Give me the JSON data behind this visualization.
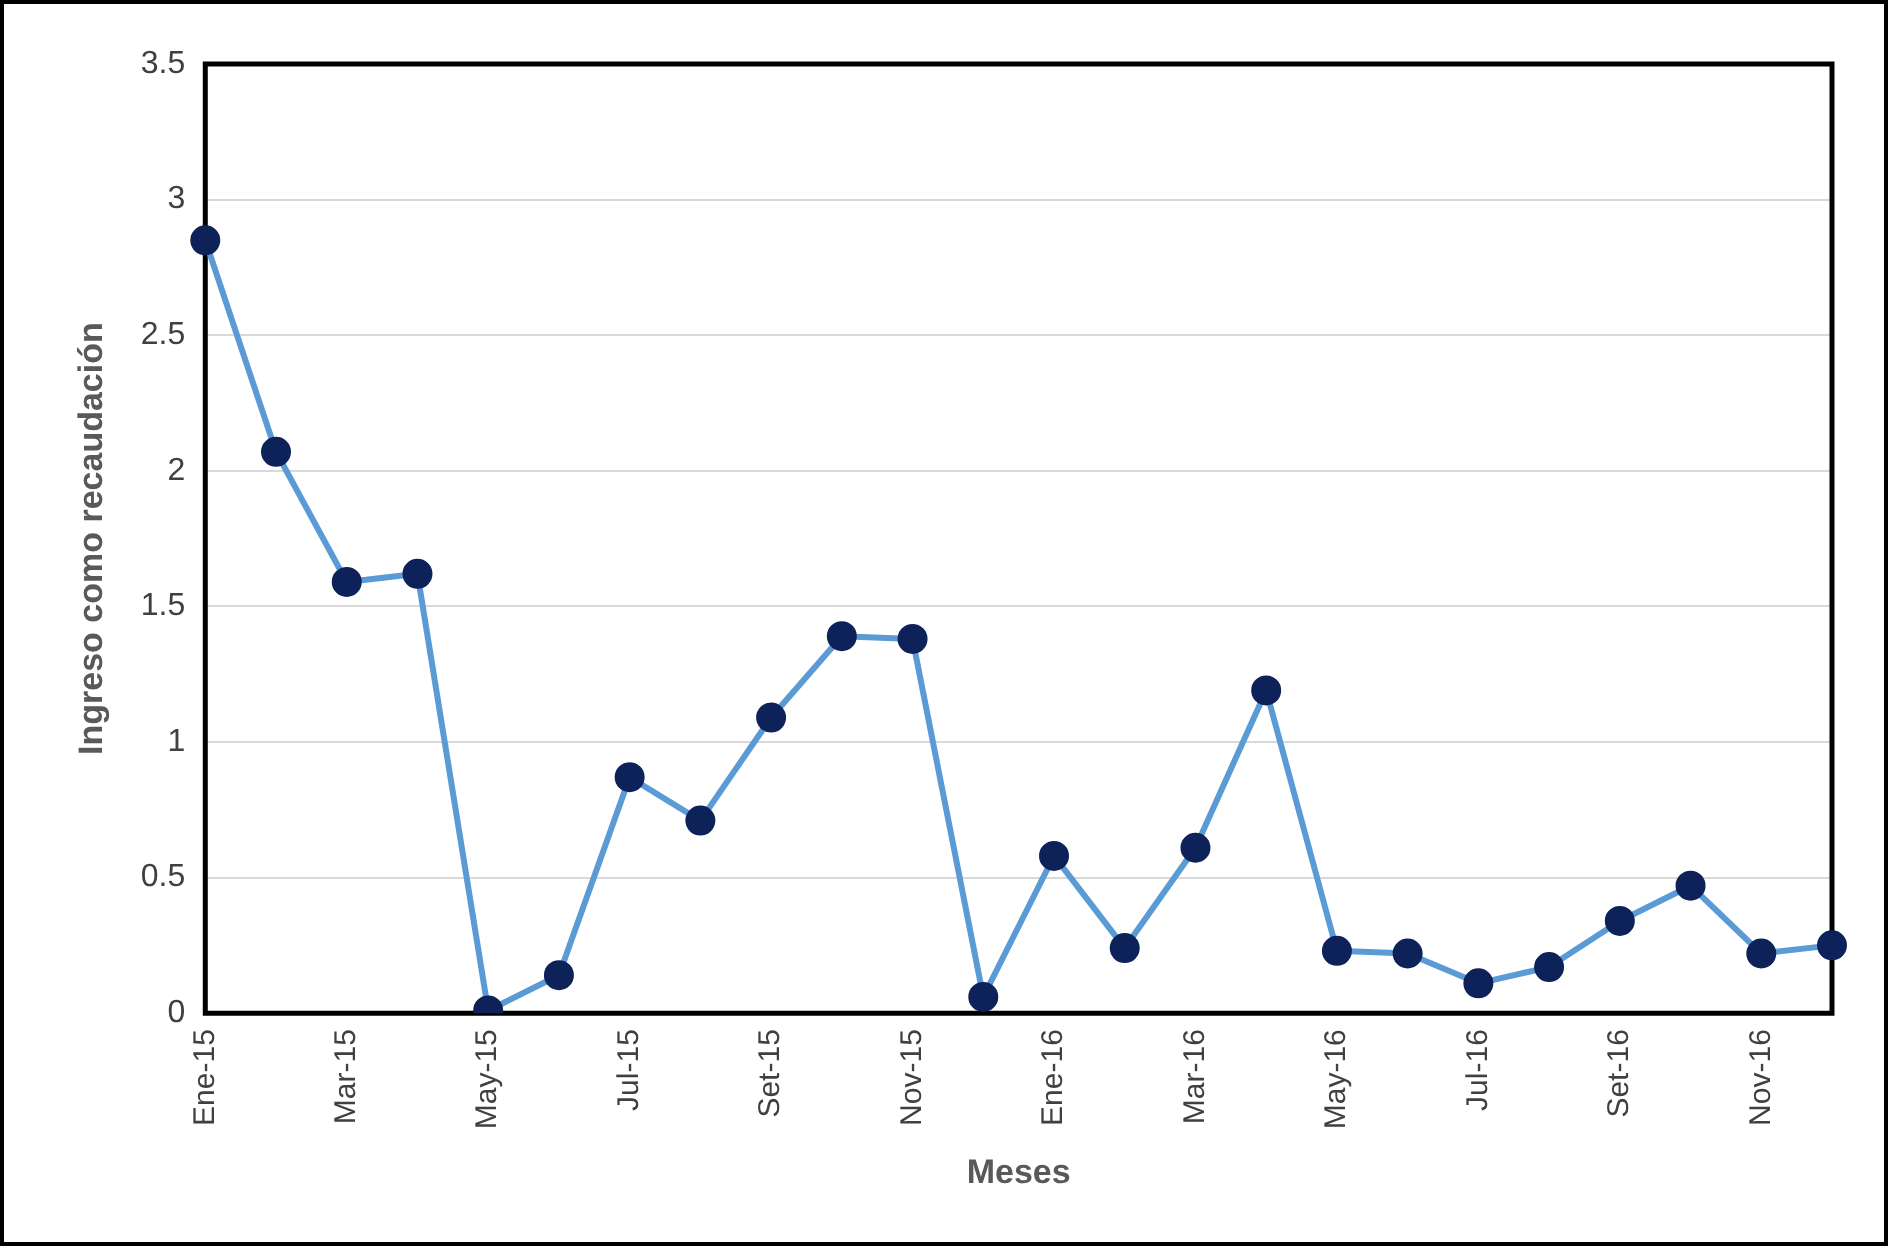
{
  "chart_data": {
    "type": "line",
    "xlabel": "Meses",
    "ylabel": "Ingreso como recaudación",
    "categories": [
      "Ene-15",
      null,
      "Mar-15",
      null,
      "May-15",
      null,
      "Jul-15",
      null,
      "Set-15",
      null,
      "Nov-15",
      null,
      "Ene-16",
      null,
      "Mar-16",
      null,
      "May-16",
      null,
      "Jul-16",
      null,
      "Set-16",
      null,
      "Nov-16",
      null
    ],
    "series": [
      {
        "color": "#5b9bd5",
        "values": [
          2.85,
          2.07,
          1.59,
          1.62,
          0.01,
          0.14,
          0.87,
          0.71,
          1.09,
          1.39,
          1.38,
          0.06,
          0.58,
          0.24,
          0.61,
          1.19,
          0.23,
          0.22,
          0.11,
          0.17,
          0.34,
          0.47,
          0.22,
          0.25
        ]
      }
    ],
    "ylim": [
      0,
      3.5
    ],
    "yticks": [
      0,
      0.5,
      1,
      1.5,
      2,
      2.5,
      3,
      3.5
    ],
    "grid": "y",
    "legend": false,
    "marker": "circle",
    "line_style": "solid"
  }
}
